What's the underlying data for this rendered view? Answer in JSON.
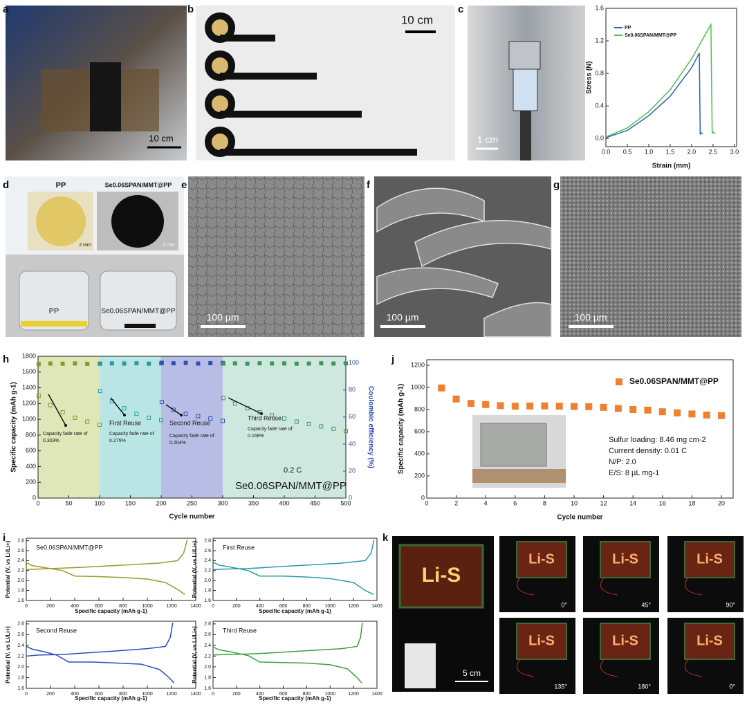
{
  "panel_letters": [
    "a",
    "b",
    "c",
    "d",
    "e",
    "f",
    "g",
    "h",
    "j",
    "i",
    "k"
  ],
  "photos": {
    "a": {
      "scale_bar": "10 cm"
    },
    "b": {
      "scale_bar": "10 cm"
    },
    "c": {
      "scale_bar": "1 cm"
    },
    "d": {
      "top_labels": [
        "PP",
        "Se0.06SPAN/MMT@PP"
      ],
      "scale_bars": [
        "2 mm",
        "2 mm"
      ],
      "bottom_labels": [
        "PP",
        "Se0.06SPAN/MMT@PP"
      ]
    },
    "e": {
      "scale_bar": "100 µm"
    },
    "f": {
      "scale_bar": "100 µm"
    },
    "g": {
      "scale_bar": "100 µm"
    },
    "k": {
      "sign": "Li-S",
      "scale_bar": "5 cm",
      "angles": [
        "0°",
        "45°",
        "90°",
        "135°",
        "180°",
        "0°"
      ]
    }
  },
  "chart_data": [
    {
      "type": "line",
      "xlabel": "Strain (mm)",
      "ylabel": "Stress (N)",
      "xlim": [
        0,
        3.05
      ],
      "xticks": [
        {
          "value": 0,
          "label": "0.0"
        },
        0.5,
        {
          "value": 1,
          "label": "1.0"
        },
        1.5,
        {
          "value": 2,
          "label": "2.0"
        },
        2.5,
        {
          "value": 3,
          "label": "3.0"
        }
      ],
      "ylim": [
        -0.1,
        1.6
      ],
      "yticks": [
        {
          "value": 0,
          "label": "0.0"
        },
        0.4,
        0.8,
        1.2,
        1.6
      ],
      "legend": "top-left",
      "series": [
        {
          "name": "PP",
          "color": "#2f5fc4",
          "x": [
            0,
            0.5,
            1,
            1.5,
            2,
            2.18,
            2.2,
            2.22,
            2.26
          ],
          "values": [
            0.01,
            0.1,
            0.28,
            0.52,
            0.87,
            1.05,
            0.05,
            0.07,
            0.06
          ]
        },
        {
          "name": "Se0.06SPAN/MMT@PP",
          "color": "#4cc24c",
          "x": [
            0,
            0.5,
            1,
            1.5,
            2,
            2.45,
            2.48,
            2.5,
            2.55
          ],
          "values": [
            0.02,
            0.13,
            0.33,
            0.6,
            0.98,
            1.4,
            0.06,
            0.08,
            0.06
          ]
        }
      ]
    },
    {
      "type": "scatter",
      "xlabel": "Cycle number",
      "ylabel": "Specific capacity (mAh g-1)",
      "y2label": "Coulombic efficiency (%)",
      "xlim": [
        0,
        500
      ],
      "xticks": [
        0,
        50,
        100,
        150,
        200,
        250,
        300,
        350,
        400,
        450,
        500
      ],
      "ylim": [
        0,
        1800
      ],
      "yticks": [
        0,
        200,
        400,
        600,
        800,
        1000,
        1200,
        1400,
        1600,
        1800
      ],
      "y2lim": [
        0,
        105
      ],
      "y2ticks": [
        0,
        20,
        40,
        60,
        80,
        100
      ],
      "regions": [
        {
          "xlim": [
            0,
            100
          ],
          "color": "#dfe6b8"
        },
        {
          "xlim": [
            100,
            200
          ],
          "color": "#b9e6e4"
        },
        {
          "xlim": [
            200,
            300
          ],
          "color": "#b8bde6"
        },
        {
          "xlim": [
            300,
            500
          ],
          "color": "#cfe8df"
        }
      ],
      "annotations": [
        "Capacity fade rate of",
        "0.303%",
        "First Reuse",
        "Capacity fade rate of",
        "0.275%",
        "Second Reuse",
        "Capacity fade rate of",
        "0.204%",
        "Third Reuse",
        "Capacity fade rate of",
        "0.168%",
        "0.2 C",
        "Se0.06SPAN/MMT@PP"
      ],
      "series": [
        {
          "color": "#8a9a2a",
          "x": [
            1,
            20,
            40,
            60,
            80,
            100
          ],
          "values": [
            1300,
            1180,
            1090,
            1020,
            970,
            930
          ]
        },
        {
          "color": "#2a9aa0",
          "x": [
            101,
            120,
            140,
            160,
            180,
            200
          ],
          "values": [
            1360,
            1230,
            1140,
            1070,
            1020,
            990
          ]
        },
        {
          "color": "#3050b8",
          "x": [
            201,
            220,
            240,
            260,
            280,
            300
          ],
          "values": [
            1220,
            1120,
            1070,
            1040,
            1010,
            980
          ]
        },
        {
          "color": "#3a9a5a",
          "x": [
            301,
            320,
            340,
            360,
            380,
            400,
            420,
            440,
            460,
            480,
            500
          ],
          "values": [
            1270,
            1200,
            1140,
            1090,
            1050,
            1010,
            970,
            940,
            910,
            880,
            850
          ]
        },
        {
          "color": "#8a9a2a",
          "axis": "y2",
          "x": [
            1,
            20,
            40,
            60,
            80,
            100
          ],
          "values": [
            99.2,
            99.6,
            99.5,
            99.7,
            99.4,
            99.6
          ]
        },
        {
          "color": "#2a9aa0",
          "axis": "y2",
          "x": [
            101,
            120,
            140,
            160,
            180,
            200
          ],
          "values": [
            99.5,
            99.7,
            99.6,
            99.8,
            99.5,
            99.7
          ]
        },
        {
          "color": "#3050b8",
          "axis": "y2",
          "x": [
            201,
            220,
            240,
            260,
            280,
            300
          ],
          "values": [
            100.2,
            99.8,
            100.1,
            99.6,
            99.9,
            100.0
          ]
        },
        {
          "color": "#3a9a5a",
          "axis": "y2",
          "x": [
            301,
            320,
            340,
            360,
            380,
            400,
            420,
            440,
            460,
            480,
            500
          ],
          "values": [
            99.6,
            99.7,
            99.5,
            99.8,
            99.6,
            99.7,
            99.5,
            99.6,
            99.8,
            99.6,
            99.7
          ]
        }
      ]
    },
    {
      "type": "scatter",
      "xlabel": "Cycle number",
      "ylabel": "Specific capacity (mAh g-1)",
      "xlim": [
        0,
        20.8
      ],
      "xticks": [
        0,
        2,
        4,
        6,
        8,
        10,
        12,
        14,
        16,
        18,
        20
      ],
      "ylim": [
        0,
        1250
      ],
      "yticks": [
        0,
        200,
        400,
        600,
        800,
        1000,
        1200
      ],
      "legend": "top-right",
      "annotations": [
        "Sulfur loading: 8.46 mg cm-2",
        "Current density: 0.01 C",
        "N/P: 2.0",
        "E/S: 8 µL mg-1"
      ],
      "series": [
        {
          "name": "Se0.06SPAN/MMT@PP",
          "color": "#f07f2f",
          "x": [
            1,
            2,
            3,
            4,
            5,
            6,
            7,
            8,
            9,
            10,
            11,
            12,
            13,
            14,
            15,
            16,
            17,
            18,
            19,
            20
          ],
          "values": [
            995,
            895,
            855,
            845,
            835,
            830,
            832,
            833,
            830,
            828,
            826,
            820,
            810,
            800,
            795,
            780,
            770,
            760,
            750,
            745
          ]
        }
      ]
    },
    {
      "type": "line",
      "title": "Se0.06SPAN/MMT@PP",
      "xlabel": "Specific capacity (mAh g-1)",
      "ylabel": "Potential (V, vs Li/Li+)",
      "xlim": [
        0,
        1400
      ],
      "xticks": [
        0,
        200,
        400,
        600,
        800,
        1000,
        1200,
        1400
      ],
      "ylim": [
        1.6,
        2.85
      ],
      "yticks": [
        1.6,
        1.8,
        {
          "value": 2,
          "label": "2.0"
        },
        2.2,
        2.4,
        2.6,
        2.8
      ],
      "series": [
        {
          "color": "#9a9a2a",
          "x": [
            0,
            50,
            150,
            300,
            400,
            600,
            800,
            1000,
            1150,
            1250,
            1310
          ],
          "values": [
            2.36,
            2.3,
            2.26,
            2.2,
            2.09,
            2.08,
            2.06,
            2.03,
            1.96,
            1.82,
            1.72
          ]
        },
        {
          "color": "#9a9a2a",
          "x": [
            0,
            100,
            300,
            500,
            800,
            1100,
            1250,
            1300,
            1330
          ],
          "values": [
            2.22,
            2.23,
            2.25,
            2.27,
            2.31,
            2.35,
            2.4,
            2.55,
            2.82
          ]
        }
      ]
    },
    {
      "type": "line",
      "title": "First Reuse",
      "xlabel": "Specific capacity (mAh g-1)",
      "ylabel": "Potential (V, vs Li/Li+)",
      "xlim": [
        0,
        1400
      ],
      "xticks": [
        0,
        200,
        400,
        600,
        800,
        1000,
        1200,
        1400
      ],
      "ylim": [
        1.6,
        2.85
      ],
      "yticks": [
        1.6,
        1.8,
        {
          "value": 2,
          "label": "2.0"
        },
        2.2,
        2.4,
        2.6,
        2.8
      ],
      "series": [
        {
          "color": "#2a9aa8",
          "x": [
            0,
            50,
            150,
            300,
            400,
            600,
            800,
            1000,
            1200,
            1300,
            1370
          ],
          "values": [
            2.37,
            2.31,
            2.27,
            2.2,
            2.09,
            2.09,
            2.07,
            2.04,
            1.96,
            1.8,
            1.72
          ]
        },
        {
          "color": "#2a9aa8",
          "x": [
            0,
            100,
            300,
            500,
            800,
            1100,
            1300,
            1350,
            1375
          ],
          "values": [
            2.22,
            2.23,
            2.24,
            2.27,
            2.31,
            2.35,
            2.4,
            2.55,
            2.82
          ]
        }
      ]
    },
    {
      "type": "line",
      "title": "Second Reuse",
      "xlabel": "Specific capacity (mAh g-1)",
      "ylabel": "Potential (V, vs Li/Li+)",
      "xlim": [
        0,
        1400
      ],
      "xticks": [
        0,
        200,
        400,
        600,
        800,
        1000,
        1200,
        1400
      ],
      "ylim": [
        1.6,
        2.85
      ],
      "yticks": [
        1.6,
        1.8,
        {
          "value": 2,
          "label": "2.0"
        },
        2.2,
        2.4,
        2.6,
        2.8
      ],
      "series": [
        {
          "color": "#2a4ac0",
          "x": [
            0,
            50,
            150,
            250,
            350,
            550,
            750,
            950,
            1100,
            1180,
            1220
          ],
          "values": [
            2.38,
            2.33,
            2.28,
            2.22,
            2.09,
            2.09,
            2.07,
            2.05,
            1.95,
            1.8,
            1.7
          ]
        },
        {
          "color": "#2a4ac0",
          "x": [
            0,
            100,
            300,
            500,
            700,
            1000,
            1150,
            1190,
            1210
          ],
          "values": [
            2.2,
            2.22,
            2.23,
            2.26,
            2.29,
            2.34,
            2.38,
            2.55,
            2.82
          ]
        }
      ]
    },
    {
      "type": "line",
      "title": "Third Reuse",
      "xlabel": "Specific capacity (mAh g-1)",
      "ylabel": "Potential (V, vs Li/Li+)",
      "xlim": [
        0,
        1400
      ],
      "xticks": [
        0,
        200,
        400,
        600,
        800,
        1000,
        1200,
        1400
      ],
      "ylim": [
        1.6,
        2.85
      ],
      "yticks": [
        1.6,
        1.8,
        {
          "value": 2,
          "label": "2.0"
        },
        2.2,
        2.4,
        2.6,
        2.8
      ],
      "series": [
        {
          "color": "#3aa03a",
          "x": [
            0,
            50,
            150,
            300,
            400,
            600,
            800,
            1000,
            1150,
            1230,
            1270
          ],
          "values": [
            2.37,
            2.32,
            2.28,
            2.21,
            2.09,
            2.08,
            2.07,
            2.04,
            1.96,
            1.8,
            1.7
          ]
        },
        {
          "color": "#3aa03a",
          "x": [
            0,
            100,
            300,
            500,
            800,
            1100,
            1230,
            1260,
            1275
          ],
          "values": [
            2.22,
            2.23,
            2.24,
            2.26,
            2.3,
            2.34,
            2.38,
            2.55,
            2.82
          ]
        }
      ]
    }
  ]
}
